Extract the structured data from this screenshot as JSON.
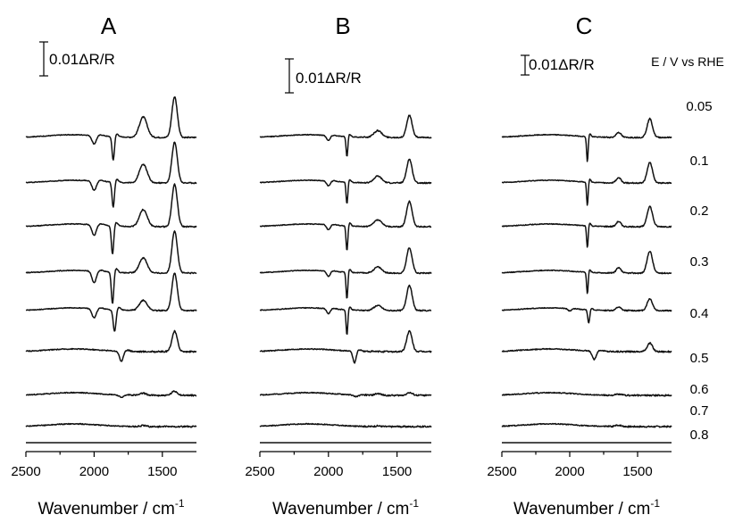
{
  "chart_data": {
    "type": "line",
    "common": {
      "xlabel": "Wavenumber / cm",
      "xlabel_sup": "-1",
      "xlim": [
        2500,
        1250
      ],
      "xticks": [
        2500,
        2000,
        1500
      ],
      "xtick_labels": [
        "2500",
        "2000",
        "1500"
      ],
      "scale_bar_label": "0.01ΔR/R",
      "scale_bar_value": 0.01,
      "potential_header": "E / V vs RHE",
      "potentials": [
        "0.05",
        "0.1",
        "0.2",
        "0.3",
        "0.4",
        "0.5",
        "0.6",
        "0.7",
        "0.8"
      ],
      "peak_positions_cm-1": {
        "CO_bridge": 1860,
        "CO_linear_weak": 2000,
        "band_1640": 1640,
        "band_1410": 1410
      }
    },
    "panels": [
      {
        "label": "A",
        "series": [
          {
            "potential": "0.05",
            "peaks": [
              {
                "x": 2000,
                "amp": -0.0025,
                "w": 22
              },
              {
                "x": 1860,
                "amp": -0.007,
                "w": 12
              },
              {
                "x": 1640,
                "amp": 0.006,
                "w": 40
              },
              {
                "x": 1410,
                "amp": 0.012,
                "w": 28
              }
            ]
          },
          {
            "potential": "0.1",
            "peaks": [
              {
                "x": 2000,
                "amp": -0.0028,
                "w": 22
              },
              {
                "x": 1860,
                "amp": -0.0075,
                "w": 12
              },
              {
                "x": 1640,
                "amp": 0.0055,
                "w": 40
              },
              {
                "x": 1410,
                "amp": 0.012,
                "w": 28
              }
            ]
          },
          {
            "potential": "0.2",
            "peaks": [
              {
                "x": 2000,
                "amp": -0.0032,
                "w": 22
              },
              {
                "x": 1865,
                "amp": -0.0085,
                "w": 12
              },
              {
                "x": 1640,
                "amp": 0.005,
                "w": 40
              },
              {
                "x": 1410,
                "amp": 0.0125,
                "w": 28
              }
            ]
          },
          {
            "potential": "0.3",
            "peaks": [
              {
                "x": 2000,
                "amp": -0.0035,
                "w": 22
              },
              {
                "x": 1865,
                "amp": -0.0095,
                "w": 12
              },
              {
                "x": 1640,
                "amp": 0.0045,
                "w": 40
              },
              {
                "x": 1410,
                "amp": 0.0125,
                "w": 28
              }
            ]
          },
          {
            "potential": "0.4",
            "peaks": [
              {
                "x": 2000,
                "amp": -0.0028,
                "w": 22
              },
              {
                "x": 1850,
                "amp": -0.0065,
                "w": 14
              },
              {
                "x": 1640,
                "amp": 0.003,
                "w": 40
              },
              {
                "x": 1410,
                "amp": 0.011,
                "w": 28
              }
            ]
          },
          {
            "potential": "0.5",
            "peaks": [
              {
                "x": 1800,
                "amp": -0.003,
                "w": 20
              },
              {
                "x": 1410,
                "amp": 0.006,
                "w": 28
              }
            ]
          },
          {
            "potential": "0.6",
            "peaks": [
              {
                "x": 1800,
                "amp": -0.0007,
                "w": 25
              },
              {
                "x": 1640,
                "amp": 0.0006,
                "w": 30
              },
              {
                "x": 1410,
                "amp": 0.0012,
                "w": 30
              }
            ]
          },
          {
            "potential": "0.7",
            "peaks": [
              {
                "x": 1640,
                "amp": 0.0003,
                "w": 30
              }
            ]
          },
          {
            "potential": "0.8",
            "peaks": []
          }
        ]
      },
      {
        "label": "B",
        "series": [
          {
            "potential": "0.05",
            "peaks": [
              {
                "x": 2000,
                "amp": -0.0015,
                "w": 18
              },
              {
                "x": 1865,
                "amp": -0.006,
                "w": 9
              },
              {
                "x": 1640,
                "amp": 0.002,
                "w": 40
              },
              {
                "x": 1410,
                "amp": 0.0065,
                "w": 28
              }
            ]
          },
          {
            "potential": "0.1",
            "peaks": [
              {
                "x": 2000,
                "amp": -0.0015,
                "w": 18
              },
              {
                "x": 1865,
                "amp": -0.0065,
                "w": 9
              },
              {
                "x": 1640,
                "amp": 0.002,
                "w": 40
              },
              {
                "x": 1410,
                "amp": 0.007,
                "w": 28
              }
            ]
          },
          {
            "potential": "0.2",
            "peaks": [
              {
                "x": 2000,
                "amp": -0.0015,
                "w": 18
              },
              {
                "x": 1865,
                "amp": -0.0075,
                "w": 9
              },
              {
                "x": 1640,
                "amp": 0.002,
                "w": 40
              },
              {
                "x": 1410,
                "amp": 0.0075,
                "w": 28
              }
            ]
          },
          {
            "potential": "0.3",
            "peaks": [
              {
                "x": 2000,
                "amp": -0.0015,
                "w": 18
              },
              {
                "x": 1865,
                "amp": -0.008,
                "w": 9
              },
              {
                "x": 1640,
                "amp": 0.0018,
                "w": 40
              },
              {
                "x": 1410,
                "amp": 0.0075,
                "w": 28
              }
            ]
          },
          {
            "potential": "0.4",
            "peaks": [
              {
                "x": 2000,
                "amp": -0.0015,
                "w": 18
              },
              {
                "x": 1865,
                "amp": -0.0075,
                "w": 9
              },
              {
                "x": 1640,
                "amp": 0.0015,
                "w": 40
              },
              {
                "x": 1410,
                "amp": 0.0075,
                "w": 28
              }
            ]
          },
          {
            "potential": "0.5",
            "peaks": [
              {
                "x": 1810,
                "amp": -0.0035,
                "w": 16
              },
              {
                "x": 1410,
                "amp": 0.006,
                "w": 28
              }
            ]
          },
          {
            "potential": "0.6",
            "peaks": [
              {
                "x": 1800,
                "amp": -0.0005,
                "w": 25
              },
              {
                "x": 1640,
                "amp": 0.0005,
                "w": 30
              },
              {
                "x": 1410,
                "amp": 0.0008,
                "w": 30
              }
            ]
          },
          {
            "potential": "0.7",
            "peaks": [
              {
                "x": 1640,
                "amp": 0.0002,
                "w": 30
              }
            ]
          },
          {
            "potential": "0.8",
            "peaks": []
          }
        ]
      },
      {
        "label": "C",
        "series": [
          {
            "potential": "0.05",
            "peaks": [
              {
                "x": 1870,
                "amp": -0.0075,
                "w": 8
              },
              {
                "x": 1640,
                "amp": 0.0015,
                "w": 25
              },
              {
                "x": 1410,
                "amp": 0.0055,
                "w": 28
              }
            ]
          },
          {
            "potential": "0.1",
            "peaks": [
              {
                "x": 1870,
                "amp": -0.007,
                "w": 8
              },
              {
                "x": 1640,
                "amp": 0.0015,
                "w": 25
              },
              {
                "x": 1410,
                "amp": 0.006,
                "w": 28
              }
            ]
          },
          {
            "potential": "0.2",
            "peaks": [
              {
                "x": 1870,
                "amp": -0.0065,
                "w": 8
              },
              {
                "x": 1640,
                "amp": 0.0015,
                "w": 25
              },
              {
                "x": 1410,
                "amp": 0.006,
                "w": 28
              }
            ]
          },
          {
            "potential": "0.3",
            "peaks": [
              {
                "x": 1870,
                "amp": -0.0065,
                "w": 8
              },
              {
                "x": 1640,
                "amp": 0.0015,
                "w": 25
              },
              {
                "x": 1410,
                "amp": 0.0065,
                "w": 28
              }
            ]
          },
          {
            "potential": "0.4",
            "peaks": [
              {
                "x": 2000,
                "amp": -0.0007,
                "w": 18
              },
              {
                "x": 1860,
                "amp": -0.004,
                "w": 10
              },
              {
                "x": 1640,
                "amp": 0.001,
                "w": 25
              },
              {
                "x": 1410,
                "amp": 0.0035,
                "w": 28
              }
            ]
          },
          {
            "potential": "0.5",
            "peaks": [
              {
                "x": 1820,
                "amp": -0.0025,
                "w": 20
              },
              {
                "x": 1410,
                "amp": 0.0025,
                "w": 28
              }
            ]
          },
          {
            "potential": "0.6",
            "peaks": [
              {
                "x": 1640,
                "amp": 0.0003,
                "w": 30
              }
            ]
          },
          {
            "potential": "0.7",
            "peaks": [
              {
                "x": 1640,
                "amp": 0.0004,
                "w": 30
              }
            ]
          },
          {
            "potential": "0.8",
            "peaks": []
          }
        ]
      }
    ]
  }
}
